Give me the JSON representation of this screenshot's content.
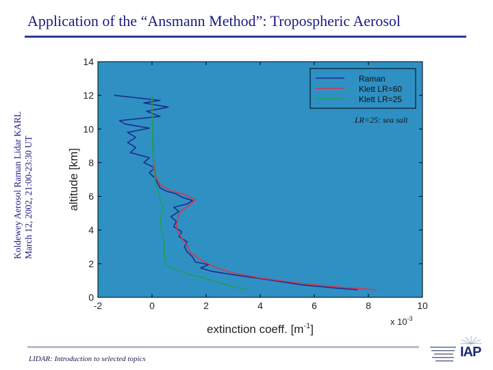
{
  "slide": {
    "title": "Application of the “Ansmann Method”: Tropospheric Aerosol",
    "side_caption_line1": "Koldewey Aerosol Raman Lidar KARL",
    "side_caption_line2": "March 12, 2002, 21:00-23:30 UT",
    "footer": "LIDAR: Introduction to selected topics",
    "logo_text": "IAP"
  },
  "colors": {
    "plot_background": "#2f90c4",
    "raman": "#1e2a8e",
    "klett60": "#d9364a",
    "klett25": "#1fa050"
  },
  "chart_data": {
    "type": "line",
    "xlabel": "extinction coeff. [m",
    "xlabel_sup": "-1",
    "xlabel_end": "]",
    "x_exponent": "x 10",
    "x_exponent_sup": "-3",
    "ylabel": "altitude [km]",
    "xlim": [
      -2,
      10
    ],
    "ylim": [
      0,
      14
    ],
    "xticks": [
      -2,
      0,
      2,
      4,
      6,
      8,
      10
    ],
    "yticks": [
      0,
      2,
      4,
      6,
      8,
      10,
      12,
      14
    ],
    "grid": false,
    "legend_position": "top-right",
    "annotation": "LR=25: sea salt",
    "series": [
      {
        "name": "Raman",
        "color": "#1e2a8e",
        "points": [
          [
            7.6,
            0.45
          ],
          [
            6.8,
            0.55
          ],
          [
            5.5,
            0.75
          ],
          [
            4.5,
            1.0
          ],
          [
            3.2,
            1.3
          ],
          [
            2.2,
            1.55
          ],
          [
            1.8,
            1.75
          ],
          [
            2.1,
            1.95
          ],
          [
            1.6,
            2.1
          ],
          [
            1.5,
            2.4
          ],
          [
            1.3,
            2.7
          ],
          [
            1.2,
            3.0
          ],
          [
            1.3,
            3.3
          ],
          [
            1.0,
            3.6
          ],
          [
            1.1,
            3.9
          ],
          [
            0.8,
            4.2
          ],
          [
            0.9,
            4.5
          ],
          [
            0.7,
            4.8
          ],
          [
            1.0,
            5.1
          ],
          [
            0.8,
            5.35
          ],
          [
            1.3,
            5.55
          ],
          [
            1.5,
            5.75
          ],
          [
            1.1,
            5.95
          ],
          [
            0.9,
            6.15
          ],
          [
            0.55,
            6.3
          ],
          [
            0.3,
            6.5
          ],
          [
            0.2,
            6.8
          ],
          [
            0.1,
            7.1
          ],
          [
            -0.1,
            7.4
          ],
          [
            0.1,
            7.7
          ],
          [
            -0.3,
            8.0
          ],
          [
            -0.1,
            8.3
          ],
          [
            -0.8,
            8.6
          ],
          [
            -0.6,
            8.9
          ],
          [
            -0.9,
            9.2
          ],
          [
            -0.6,
            9.5
          ],
          [
            -0.9,
            9.8
          ],
          [
            -0.1,
            10.05
          ],
          [
            -1.0,
            10.3
          ],
          [
            -1.2,
            10.5
          ],
          [
            0.3,
            10.75
          ],
          [
            -0.2,
            11.05
          ],
          [
            0.6,
            11.3
          ],
          [
            -0.3,
            11.55
          ],
          [
            0.3,
            11.7
          ],
          [
            -1.4,
            12.0
          ]
        ]
      },
      {
        "name": "Klett LR=60",
        "color": "#d9364a",
        "points": [
          [
            8.3,
            0.45
          ],
          [
            7.0,
            0.6
          ],
          [
            5.4,
            0.85
          ],
          [
            4.0,
            1.15
          ],
          [
            3.0,
            1.45
          ],
          [
            2.4,
            1.75
          ],
          [
            2.0,
            2.05
          ],
          [
            1.7,
            2.35
          ],
          [
            1.4,
            2.7
          ],
          [
            1.3,
            3.1
          ],
          [
            1.1,
            3.5
          ],
          [
            0.95,
            3.9
          ],
          [
            0.9,
            4.3
          ],
          [
            0.95,
            4.7
          ],
          [
            1.05,
            5.1
          ],
          [
            1.4,
            5.5
          ],
          [
            1.6,
            5.8
          ],
          [
            1.2,
            6.1
          ],
          [
            0.7,
            6.35
          ],
          [
            0.3,
            6.7
          ],
          [
            0.15,
            7.1
          ],
          [
            0.1,
            7.6
          ],
          [
            0.05,
            8.2
          ],
          [
            0.05,
            9.0
          ],
          [
            0.02,
            10.0
          ],
          [
            0.0,
            11.0
          ],
          [
            0.0,
            12.0
          ]
        ]
      },
      {
        "name": "Klett LR=25",
        "color": "#1fa050",
        "points": [
          [
            3.5,
            0.45
          ],
          [
            3.0,
            0.65
          ],
          [
            2.4,
            0.9
          ],
          [
            1.9,
            1.15
          ],
          [
            1.3,
            1.4
          ],
          [
            0.8,
            1.7
          ],
          [
            0.5,
            2.0
          ],
          [
            0.45,
            2.5
          ],
          [
            0.45,
            3.0
          ],
          [
            0.42,
            3.6
          ],
          [
            0.35,
            4.1
          ],
          [
            0.3,
            4.6
          ],
          [
            0.35,
            5.0
          ],
          [
            0.4,
            5.4
          ],
          [
            0.3,
            5.8
          ],
          [
            0.25,
            6.2
          ],
          [
            0.15,
            6.6
          ],
          [
            0.1,
            7.2
          ],
          [
            0.05,
            8.0
          ],
          [
            0.03,
            9.0
          ],
          [
            0.02,
            10.0
          ],
          [
            0.0,
            11.0
          ],
          [
            0.0,
            12.0
          ]
        ]
      }
    ]
  }
}
